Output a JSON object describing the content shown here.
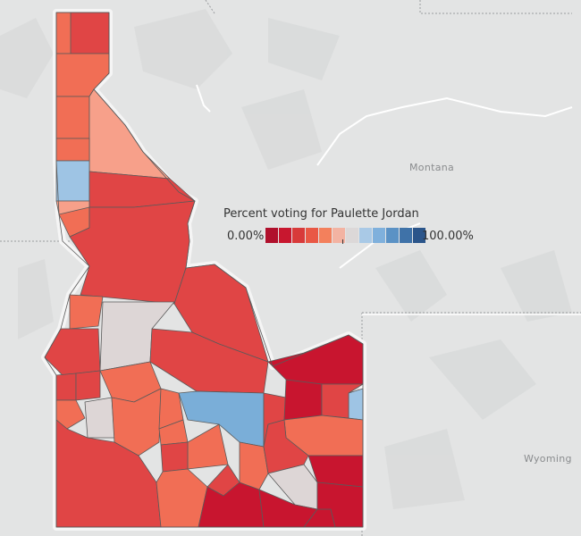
{
  "legend": {
    "title": "Percent voting for Paulette Jordan",
    "min_label": "0.00%",
    "max_label": "100.00%",
    "swatches": [
      "#b0102c",
      "#c8172f",
      "#d83a3a",
      "#e95845",
      "#f3805c",
      "#f3b3a2",
      "#dcd8d8",
      "#a9c9e6",
      "#7fb0dc",
      "#5b92c5",
      "#3f72a8",
      "#2b558a"
    ]
  },
  "places": {
    "montana": "Montana",
    "wyoming": "Wyoming"
  },
  "colors": {
    "background": "#e3e4e4",
    "state_outline": "#f5f5f5",
    "county_border": "#555555",
    "dark_red": "#c8152f",
    "red": "#e04545",
    "salmon": "#ef6b52",
    "light_salmon": "#f7a08a",
    "neutral": "#ddd6d6",
    "light_blue": "#9ec4e4",
    "blue": "#7aaed8"
  }
}
